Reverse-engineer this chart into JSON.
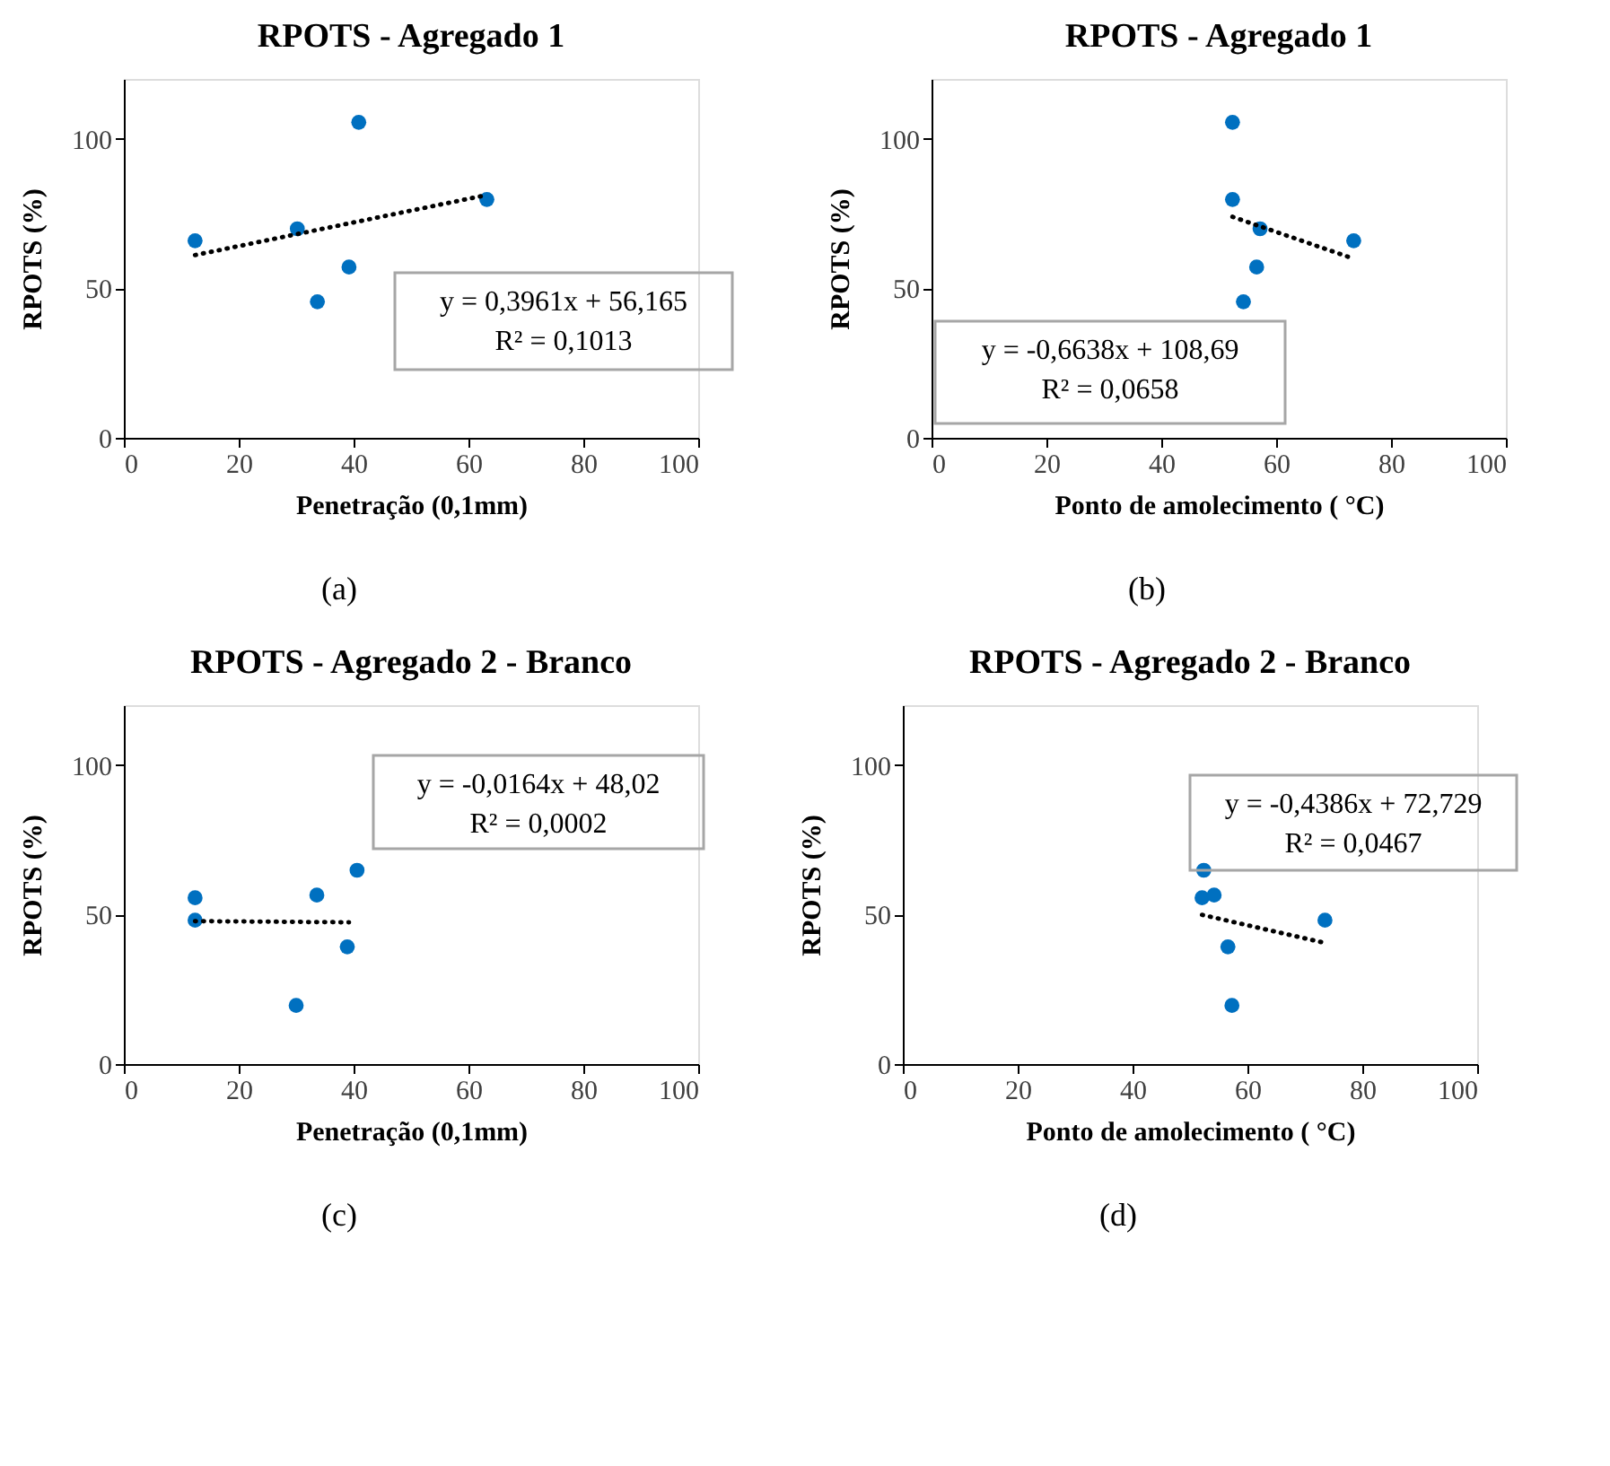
{
  "chart_data": [
    {
      "type": "scatter",
      "title": "RPOTS - Agregado 1",
      "xlabel": "Penetração (0,1mm)",
      "ylabel": "RPOTS (%)",
      "xlim": [
        0,
        100
      ],
      "xticks": [
        0,
        20,
        40,
        60,
        80,
        100
      ],
      "ylim": [
        0,
        120
      ],
      "yticks": [
        0,
        50,
        100
      ],
      "grid": false,
      "series": [
        {
          "type": "scatter",
          "color": "#0070c0",
          "marker": "circle",
          "x": [
            12.4,
            30.2,
            40.9,
            33.7,
            39.2,
            63.2
          ],
          "values": [
            65.9,
            69.9,
            105.5,
            45.5,
            57.1,
            79.7
          ]
        },
        {
          "type": "line",
          "color": "#000000",
          "marker": "none",
          "line_style": "dotted",
          "x": [
            12.4,
            63.2
          ],
          "values": [
            61.1,
            81.2
          ]
        }
      ],
      "annotations": [
        "y = 0,3961x + 56,165",
        "R² = 0,1013",
        "(a)"
      ]
    },
    {
      "type": "scatter",
      "title": "RPOTS - Agregado 1",
      "xlabel": "Ponto de amolecimento (   °C)",
      "ylabel": "RPOTS (%)",
      "xlim": [
        0,
        100
      ],
      "xticks": [
        0,
        20,
        40,
        60,
        80,
        100
      ],
      "ylim": [
        0,
        120
      ],
      "yticks": [
        0,
        50,
        100
      ],
      "grid": false,
      "series": [
        {
          "type": "scatter",
          "color": "#0070c0",
          "marker": "circle",
          "x": [
            52.4,
            52.4,
            57.2,
            56.6,
            54.3,
            73.5
          ],
          "values": [
            105.5,
            79.7,
            69.9,
            57.1,
            45.5,
            65.9
          ]
        },
        {
          "type": "line",
          "color": "#000000",
          "marker": "none",
          "line_style": "dotted",
          "x": [
            52.4,
            73.5
          ],
          "values": [
            73.9,
            59.9
          ]
        }
      ],
      "annotations": [
        "y = -0,6638x + 108,69",
        "R² = 0,0658",
        "(b)"
      ]
    },
    {
      "type": "scatter",
      "title": "RPOTS - Agregado 2 - Branco",
      "xlabel": "Penetração (0,1mm)",
      "ylabel": "RPOTS (%)",
      "xlim": [
        0,
        100
      ],
      "xticks": [
        0,
        20,
        40,
        60,
        80,
        100
      ],
      "ylim": [
        0,
        120
      ],
      "yticks": [
        0,
        50,
        100
      ],
      "grid": false,
      "series": [
        {
          "type": "scatter",
          "color": "#0070c0",
          "marker": "circle",
          "x": [
            12.4,
            12.4,
            33.6,
            40.6,
            38.9,
            30.0
          ],
          "values": [
            55.6,
            48.1,
            56.5,
            64.8,
            39.2,
            19.6
          ]
        },
        {
          "type": "line",
          "color": "#000000",
          "marker": "none",
          "line_style": "dotted",
          "x": [
            12.4,
            39.2
          ],
          "values": [
            47.8,
            47.4
          ]
        }
      ],
      "annotations": [
        "y = -0,0164x + 48,02",
        "R² = 0,0002",
        "(c)"
      ]
    },
    {
      "type": "scatter",
      "title": "RPOTS - Agregado 2 - Branco",
      "xlabel": "Ponto de amolecimento (   °C)",
      "ylabel": "RPOTS (%)",
      "xlim": [
        0,
        100
      ],
      "xticks": [
        0,
        20,
        40,
        60,
        80,
        100
      ],
      "ylim": [
        0,
        120
      ],
      "yticks": [
        0,
        50,
        100
      ],
      "grid": false,
      "series": [
        {
          "type": "scatter",
          "color": "#0070c0",
          "marker": "circle",
          "x": [
            52.4,
            52.1,
            54.2,
            56.6,
            57.3,
            73.5
          ],
          "values": [
            64.8,
            55.6,
            56.5,
            39.2,
            19.6,
            48.1
          ]
        },
        {
          "type": "line",
          "color": "#000000",
          "marker": "none",
          "line_style": "dotted",
          "x": [
            52.1,
            73.5
          ],
          "values": [
            49.9,
            40.5
          ]
        }
      ],
      "annotations": [
        "y = -0,4386x + 72,729",
        "R² = 0,0467",
        "(d)"
      ]
    }
  ]
}
